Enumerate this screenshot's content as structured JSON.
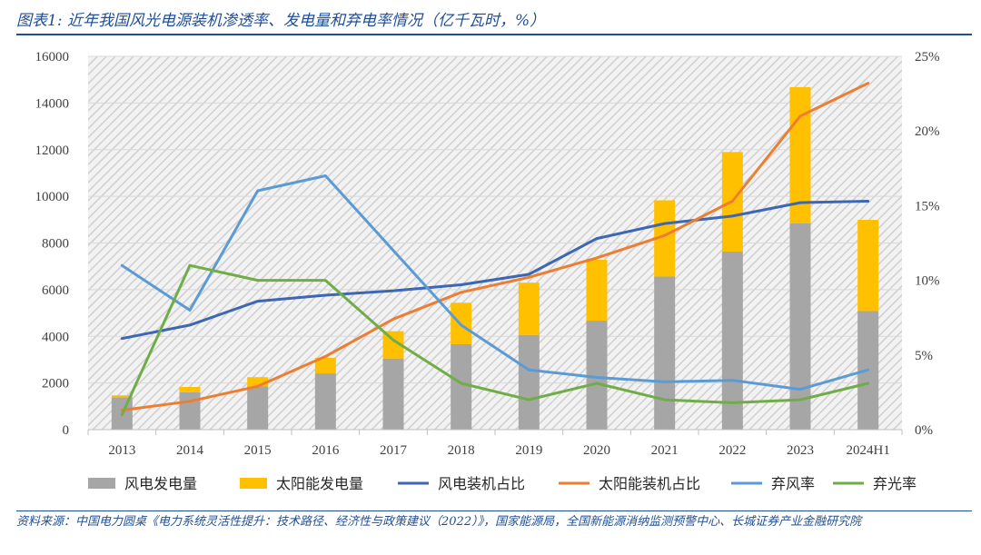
{
  "header": {
    "title": "图表1:  近年我国风光电源装机渗透率、发电量和弃电率情况（亿千瓦时，%）"
  },
  "footer": {
    "source": "资料来源：中国电力圆桌《电力系统灵活性提升：技术路径、经济性与政策建议（2022）》，国家能源局，全国新能源消纳监测预警中心、长城证券产业金融研究院"
  },
  "chart_data": {
    "type": "bar",
    "title": "",
    "categories": [
      "2013",
      "2014",
      "2015",
      "2016",
      "2017",
      "2018",
      "2019",
      "2020",
      "2021",
      "2022",
      "2023",
      "2024H1"
    ],
    "ylim": [
      0,
      16000
    ],
    "y_ticks": [
      "0",
      "2000",
      "4000",
      "6000",
      "8000",
      "10000",
      "12000",
      "14000",
      "16000"
    ],
    "y2lim": [
      0,
      25
    ],
    "y2_ticks": [
      "0%",
      "5%",
      "10%",
      "15%",
      "20%",
      "25%"
    ],
    "legend_position": "bottom",
    "series": [
      {
        "name": "风电发电量",
        "type": "bar",
        "axis": "left",
        "stack": "gen",
        "color": "#a6a6a6",
        "values": [
          1380,
          1600,
          1860,
          2410,
          3050,
          3660,
          4060,
          4670,
          6560,
          7630,
          8850,
          5080
        ]
      },
      {
        "name": "太阳能发电量",
        "type": "bar",
        "axis": "left",
        "stack": "gen",
        "color": "#ffc000",
        "values": [
          90,
          230,
          390,
          670,
          1170,
          1780,
          2240,
          2610,
          3270,
          4270,
          5830,
          3910
        ]
      },
      {
        "name": "风电装机占比",
        "type": "line",
        "axis": "right",
        "color": "#3d67b4",
        "values": [
          6.1,
          7.0,
          8.6,
          9.0,
          9.3,
          9.7,
          10.4,
          12.8,
          13.8,
          14.3,
          15.2,
          15.3
        ]
      },
      {
        "name": "太阳能装机占比",
        "type": "line",
        "axis": "right",
        "color": "#ed7d31",
        "values": [
          1.3,
          1.9,
          2.9,
          4.9,
          7.4,
          9.2,
          10.2,
          11.5,
          13.0,
          15.3,
          21.0,
          23.2
        ]
      },
      {
        "name": "弃风率",
        "type": "line",
        "axis": "right",
        "color": "#5b9bd5",
        "values": [
          11.0,
          8.0,
          16.0,
          17.0,
          12.0,
          7.0,
          4.0,
          3.5,
          3.2,
          3.3,
          2.7,
          4.0
        ]
      },
      {
        "name": "弃光率",
        "type": "line",
        "axis": "right",
        "color": "#70ad47",
        "values": [
          1.0,
          11.0,
          10.0,
          10.0,
          6.0,
          3.1,
          2.0,
          3.1,
          2.0,
          1.8,
          2.0,
          3.1
        ]
      }
    ]
  }
}
